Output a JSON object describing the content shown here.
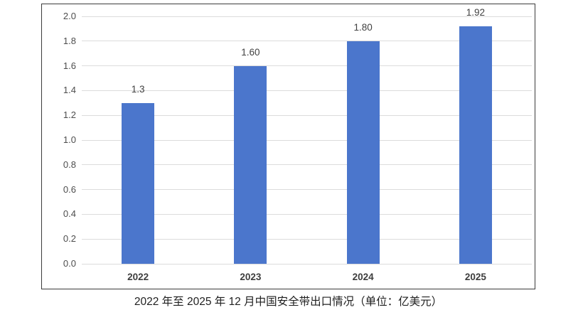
{
  "chart_data": {
    "type": "bar",
    "categories": [
      "2022",
      "2023",
      "2024",
      "2025"
    ],
    "values": [
      1.3,
      1.6,
      1.8,
      1.92
    ],
    "value_labels": [
      "1.3",
      "1.60",
      "1.80",
      "1.92"
    ],
    "title": "2022 年至 2025 年 12 月中国安全带出口情况（单位：亿美元）",
    "xlabel": "",
    "ylabel": "",
    "ylim": [
      0.0,
      2.0
    ],
    "ytick_step": 0.2,
    "ytick_labels": [
      "0.0",
      "0.2",
      "0.4",
      "0.6",
      "0.8",
      "1.0",
      "1.2",
      "1.4",
      "1.6",
      "1.8",
      "2.0"
    ],
    "grid": true,
    "legend_position": "none",
    "colors": {
      "bar": "#4b76cc",
      "gridline": "#dcdcdc",
      "frame_border": "#3b3b3b",
      "y_tick_label": "#4d4d4d",
      "x_category_label": "#3d3d3d",
      "data_label": "#404040",
      "background": "#ffffff"
    }
  }
}
